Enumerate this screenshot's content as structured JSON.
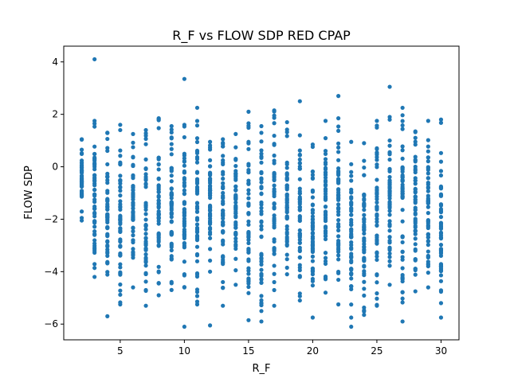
{
  "chart_data": {
    "type": "scatter",
    "title": "R_F vs FLOW SDP RED CPAP",
    "xlabel": "R_F",
    "ylabel": "FLOW SDP",
    "xlim": [
      0.6,
      31.4
    ],
    "ylim": [
      -6.6,
      4.6
    ],
    "xticks": [
      5,
      10,
      15,
      20,
      25,
      30
    ],
    "yticks": [
      -6,
      -4,
      -2,
      0,
      2,
      4
    ],
    "grid": false,
    "series_color": "#1f77b4",
    "columns": [
      {
        "x": 2,
        "min": -2.05,
        "max": 1.05
      },
      {
        "x": 3,
        "min": -4.2,
        "max": 1.75,
        "extra": [
          4.1
        ]
      },
      {
        "x": 4,
        "min": -5.7,
        "max": 1.3
      },
      {
        "x": 5,
        "min": -5.25,
        "max": 1.6
      },
      {
        "x": 6,
        "min": -4.6,
        "max": 1.25
      },
      {
        "x": 7,
        "min": -5.3,
        "max": 1.4
      },
      {
        "x": 8,
        "min": -4.9,
        "max": 1.85
      },
      {
        "x": 9,
        "min": -4.7,
        "max": 1.55
      },
      {
        "x": 10,
        "min": -4.6,
        "max": 1.6,
        "extra": [
          3.35,
          -6.1
        ]
      },
      {
        "x": 11,
        "min": -5.25,
        "max": 2.25
      },
      {
        "x": 12,
        "min": -4.0,
        "max": 0.95,
        "extra": [
          -6.05
        ]
      },
      {
        "x": 13,
        "min": -5.3,
        "max": 1.05
      },
      {
        "x": 14,
        "min": -4.5,
        "max": 1.25
      },
      {
        "x": 15,
        "min": -5.85,
        "max": 2.1
      },
      {
        "x": 16,
        "min": -5.9,
        "max": 1.55
      },
      {
        "x": 17,
        "min": -5.3,
        "max": 2.15
      },
      {
        "x": 18,
        "min": -4.1,
        "max": 1.7
      },
      {
        "x": 19,
        "min": -5.1,
        "max": 1.2,
        "extra": [
          2.5
        ]
      },
      {
        "x": 20,
        "min": -5.75,
        "max": 0.85
      },
      {
        "x": 21,
        "min": -4.8,
        "max": 1.75
      },
      {
        "x": 22,
        "min": -5.25,
        "max": 1.85,
        "extra": [
          2.7
        ]
      },
      {
        "x": 23,
        "min": -6.1,
        "max": 0.95
      },
      {
        "x": 24,
        "min": -5.65,
        "max": 0.9
      },
      {
        "x": 25,
        "min": -5.3,
        "max": 1.75
      },
      {
        "x": 26,
        "min": -4.5,
        "max": 1.9,
        "extra": [
          3.05
        ]
      },
      {
        "x": 27,
        "min": -5.9,
        "max": 2.25
      },
      {
        "x": 28,
        "min": -4.75,
        "max": 1.35
      },
      {
        "x": 29,
        "min": -4.6,
        "max": 1.75
      },
      {
        "x": 30,
        "min": -5.75,
        "max": 1.8
      }
    ]
  }
}
